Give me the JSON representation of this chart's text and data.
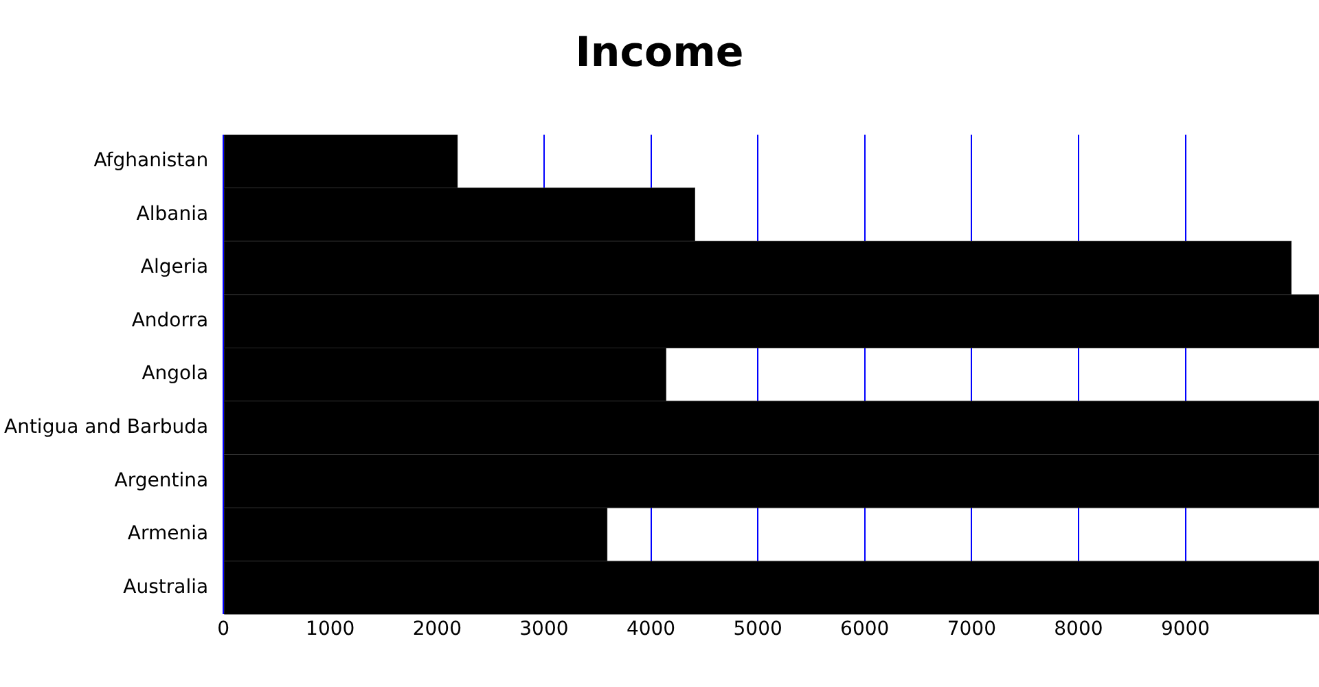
{
  "chart_data": {
    "type": "bar",
    "title": "Income",
    "orientation": "horizontal",
    "categories": [
      "Afghanistan",
      "Albania",
      "Algeria",
      "Andorra",
      "Angola",
      "Antigua and Barbuda",
      "Argentina",
      "Armenia",
      "Australia"
    ],
    "values": [
      2190,
      4410,
      9990,
      10250,
      4140,
      10250,
      10250,
      3590,
      10250
    ],
    "color": "#000000",
    "xlim": [
      0,
      10250
    ],
    "xticks": [
      0,
      1000,
      2000,
      3000,
      4000,
      5000,
      6000,
      7000,
      8000,
      9000
    ],
    "grid": "x",
    "legend": false
  }
}
